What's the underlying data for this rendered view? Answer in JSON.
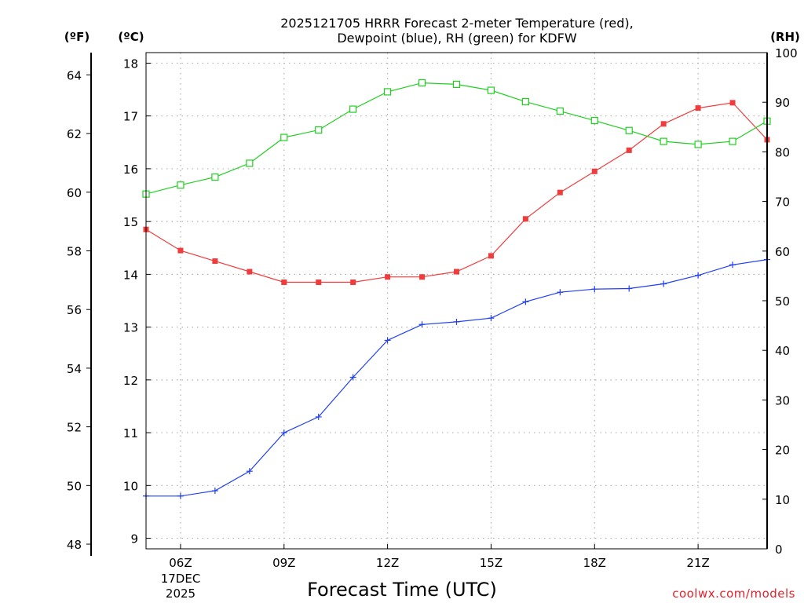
{
  "chart_data": {
    "type": "line",
    "title_line1": "2025121705 HRRR Forecast 2-meter Temperature (red),",
    "title_line2": "Dewpoint (blue), RH (green) for KDFW",
    "unit_f": "(ºF)",
    "unit_c": "(ºC)",
    "unit_rh": "(RH)",
    "xlabel": "Forecast Time (UTC)",
    "credit": "coolwx.com/models",
    "x_hours": [
      5,
      6,
      7,
      8,
      9,
      10,
      11,
      12,
      13,
      14,
      15,
      16,
      17,
      18,
      19,
      20,
      21,
      22,
      23
    ],
    "xlim": [
      5,
      23
    ],
    "x_ticks": [
      {
        "hour": 6,
        "label": "06Z"
      },
      {
        "hour": 9,
        "label": "09Z"
      },
      {
        "hour": 12,
        "label": "12Z"
      },
      {
        "hour": 15,
        "label": "15Z"
      },
      {
        "hour": 18,
        "label": "18Z"
      },
      {
        "hour": 21,
        "label": "21Z"
      }
    ],
    "date_label_day": "17DEC",
    "date_label_year": "2025",
    "ylim_c": [
      8.8,
      18.2
    ],
    "yticks_c": [
      9,
      10,
      11,
      12,
      13,
      14,
      15,
      16,
      17,
      18
    ],
    "ylim_rh": [
      0,
      100
    ],
    "yticks_rh": [
      0,
      10,
      20,
      30,
      40,
      50,
      60,
      70,
      80,
      90,
      100
    ],
    "yticks_f": [
      48,
      50,
      52,
      54,
      56,
      58,
      60,
      62,
      64
    ],
    "series": [
      {
        "name": "2-meter Temperature",
        "axis": "c",
        "color": "#f03c3c",
        "marker": "filled-square",
        "values": [
          14.85,
          14.45,
          14.25,
          14.05,
          13.85,
          13.85,
          13.85,
          13.95,
          13.95,
          14.05,
          14.35,
          15.05,
          15.55,
          15.95,
          16.35,
          16.85,
          17.15,
          17.25,
          16.55
        ]
      },
      {
        "name": "Dewpoint",
        "axis": "c",
        "color": "#2040f0",
        "marker": "plus",
        "values": [
          9.8,
          9.8,
          9.9,
          10.27,
          11.0,
          11.3,
          12.05,
          12.75,
          13.05,
          13.1,
          13.17,
          13.48,
          13.66,
          13.72,
          13.73,
          13.82,
          13.98,
          14.18,
          14.28
        ]
      },
      {
        "name": "RH",
        "axis": "rh",
        "color": "#20d020",
        "marker": "open-square",
        "values": [
          71.5,
          73.3,
          74.9,
          77.7,
          82.9,
          84.4,
          88.6,
          92.1,
          93.9,
          93.6,
          92.4,
          90.1,
          88.2,
          86.3,
          84.3,
          82.1,
          81.5,
          82.1,
          86.2
        ]
      }
    ]
  }
}
